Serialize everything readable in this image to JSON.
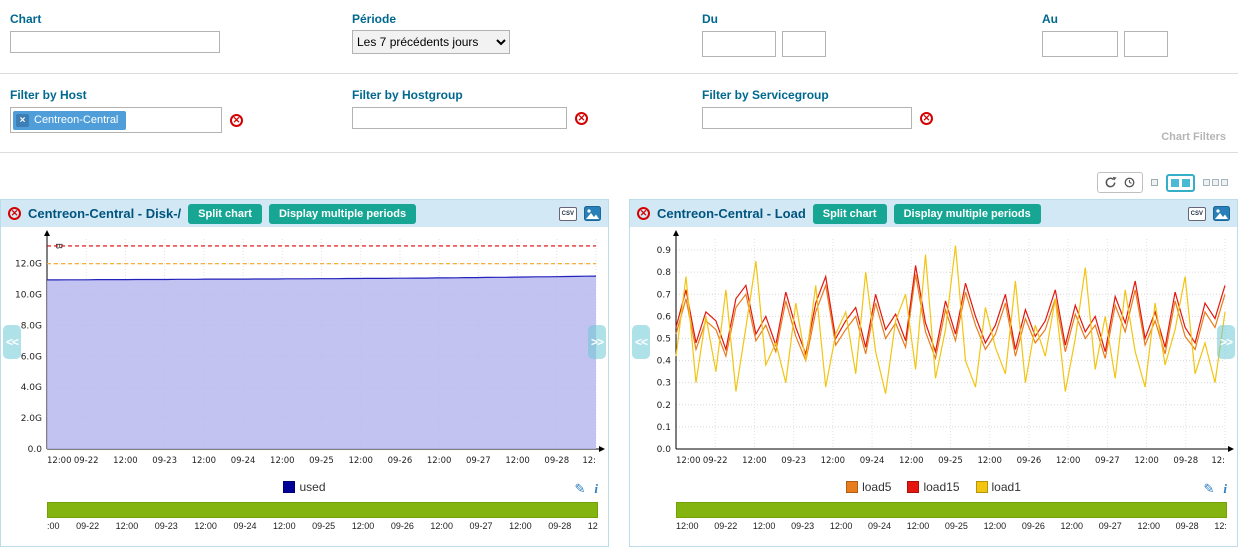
{
  "icons": {
    "close": "✕",
    "remove_tag": "×",
    "prev": "<<",
    "next": ">>",
    "pencil": "✎",
    "info": "i"
  },
  "filters": {
    "chart_label": "Chart",
    "chart_value": "",
    "periode_label": "Période",
    "periode_value": "Les 7 précédents jours",
    "du_label": "Du",
    "au_label": "Au",
    "host_label": "Filter by Host",
    "host_tag": "Centreon-Central",
    "hostgroup_label": "Filter by Hostgroup",
    "servicegroup_label": "Filter by Servicegroup",
    "section_title": "Chart Filters"
  },
  "charts": [
    {
      "title": "Centreon-Central - Disk-/",
      "split_button": "Split chart",
      "periods_button": "Display multiple periods",
      "csv_label": "CSV",
      "legend": [
        {
          "label": "used",
          "color": "#000099"
        }
      ],
      "chart_data": {
        "type": "area",
        "title": "Centreon-Central - Disk-/",
        "y_unit": "B",
        "ylim": [
          0,
          13.6
        ],
        "yticks": [
          {
            "v": 0,
            "label": "0.0"
          },
          {
            "v": 2,
            "label": "2.0G"
          },
          {
            "v": 4,
            "label": "4.0G"
          },
          {
            "v": 6,
            "label": "6.0G"
          },
          {
            "v": 8,
            "label": "8.0G"
          },
          {
            "v": 10,
            "label": "10.0G"
          },
          {
            "v": 12,
            "label": "12.0G"
          }
        ],
        "xticks": [
          "12:00",
          "09-22",
          "12:00",
          "09-23",
          "12:00",
          "09-24",
          "12:00",
          "09-25",
          "12:00",
          "09-26",
          "12:00",
          "09-27",
          "12:00",
          "09-28",
          "12:"
        ],
        "timeline_labels": [
          ":00",
          "09-22",
          "12:00",
          "09-23",
          "12:00",
          "09-24",
          "12:00",
          "09-25",
          "12:00",
          "09-26",
          "12:00",
          "09-27",
          "12:00",
          "09-28",
          "12"
        ],
        "thresholds": [
          {
            "name": "critical",
            "value": 13.15,
            "color": "#e00000"
          },
          {
            "name": "warning",
            "value": 12.0,
            "color": "#f5a623"
          }
        ],
        "series": [
          {
            "name": "used",
            "color": "#2222bb",
            "fill": "#b9b9ee",
            "values": [
              10.95,
              10.95,
              10.96,
              10.96,
              10.96,
              10.97,
              10.97,
              10.97,
              10.97,
              10.98,
              10.98,
              10.98,
              10.98,
              10.99,
              10.99,
              10.99,
              11.0,
              11.0,
              11.0,
              11.0,
              11.0,
              11.01,
              11.01,
              11.01,
              11.02,
              11.02,
              11.02,
              11.03,
              11.03,
              11.03,
              11.04,
              11.04,
              11.05,
              11.05,
              11.05,
              11.06,
              11.06,
              11.07,
              11.07,
              11.08,
              11.08,
              11.09,
              11.1,
              11.1,
              11.11,
              11.12,
              11.12,
              11.13,
              11.14,
              11.15,
              11.15,
              11.16,
              11.17,
              11.18,
              11.19,
              11.2
            ]
          }
        ]
      }
    },
    {
      "title": "Centreon-Central - Load",
      "split_button": "Split chart",
      "periods_button": "Display multiple periods",
      "csv_label": "CSV",
      "legend": [
        {
          "label": "load5",
          "color": "#e87d1e"
        },
        {
          "label": "load15",
          "color": "#e3170d"
        },
        {
          "label": "load1",
          "color": "#f2c511"
        }
      ],
      "chart_data": {
        "type": "line",
        "title": "Centreon-Central - Load",
        "ylim": [
          0,
          0.95
        ],
        "yticks": [
          {
            "v": 0.0,
            "label": "0.0"
          },
          {
            "v": 0.1,
            "label": "0.1"
          },
          {
            "v": 0.2,
            "label": "0.2"
          },
          {
            "v": 0.3,
            "label": "0.3"
          },
          {
            "v": 0.4,
            "label": "0.4"
          },
          {
            "v": 0.5,
            "label": "0.5"
          },
          {
            "v": 0.6,
            "label": "0.6"
          },
          {
            "v": 0.7,
            "label": "0.7"
          },
          {
            "v": 0.8,
            "label": "0.8"
          },
          {
            "v": 0.9,
            "label": "0.9"
          }
        ],
        "xticks": [
          "12:00",
          "09-22",
          "12:00",
          "09-23",
          "12:00",
          "09-24",
          "12:00",
          "09-25",
          "12:00",
          "09-26",
          "12:00",
          "09-27",
          "12:00",
          "09-28",
          "12:"
        ],
        "timeline_labels": [
          "12:00",
          "09-22",
          "12:00",
          "09-23",
          "12:00",
          "09-24",
          "12:00",
          "09-25",
          "12:00",
          "09-26",
          "12:00",
          "09-27",
          "12:00",
          "09-28",
          "12:"
        ],
        "thresholds": [],
        "series": [
          {
            "name": "load5",
            "color": "#e87d1e",
            "values": [
              0.52,
              0.68,
              0.45,
              0.58,
              0.54,
              0.42,
              0.64,
              0.7,
              0.49,
              0.56,
              0.44,
              0.67,
              0.51,
              0.4,
              0.62,
              0.74,
              0.47,
              0.54,
              0.6,
              0.43,
              0.66,
              0.5,
              0.57,
              0.46,
              0.79,
              0.53,
              0.41,
              0.63,
              0.49,
              0.71,
              0.56,
              0.45,
              0.52,
              0.66,
              0.42,
              0.59,
              0.48,
              0.54,
              0.68,
              0.44,
              0.61,
              0.5,
              0.56,
              0.41,
              0.65,
              0.53,
              0.72,
              0.47,
              0.58,
              0.43,
              0.67,
              0.51,
              0.45,
              0.62,
              0.55,
              0.7
            ]
          },
          {
            "name": "load15",
            "color": "#e3170d",
            "values": [
              0.55,
              0.72,
              0.48,
              0.62,
              0.58,
              0.45,
              0.68,
              0.74,
              0.52,
              0.6,
              0.47,
              0.71,
              0.55,
              0.43,
              0.66,
              0.78,
              0.5,
              0.58,
              0.64,
              0.46,
              0.7,
              0.54,
              0.61,
              0.49,
              0.83,
              0.57,
              0.44,
              0.67,
              0.52,
              0.75,
              0.6,
              0.48,
              0.56,
              0.7,
              0.45,
              0.63,
              0.51,
              0.58,
              0.72,
              0.47,
              0.65,
              0.53,
              0.6,
              0.44,
              0.69,
              0.57,
              0.76,
              0.5,
              0.62,
              0.46,
              0.71,
              0.55,
              0.48,
              0.66,
              0.59,
              0.74
            ]
          },
          {
            "name": "load1",
            "color": "#f2c511",
            "values": [
              0.42,
              0.78,
              0.3,
              0.6,
              0.35,
              0.72,
              0.26,
              0.55,
              0.85,
              0.38,
              0.48,
              0.3,
              0.66,
              0.4,
              0.74,
              0.28,
              0.52,
              0.62,
              0.34,
              0.8,
              0.44,
              0.25,
              0.58,
              0.7,
              0.36,
              0.88,
              0.32,
              0.54,
              0.92,
              0.4,
              0.28,
              0.64,
              0.46,
              0.34,
              0.76,
              0.3,
              0.56,
              0.42,
              0.68,
              0.26,
              0.5,
              0.82,
              0.36,
              0.6,
              0.32,
              0.72,
              0.44,
              0.28,
              0.66,
              0.38,
              0.54,
              0.78,
              0.34,
              0.48,
              0.3,
              0.62
            ]
          }
        ]
      }
    }
  ]
}
